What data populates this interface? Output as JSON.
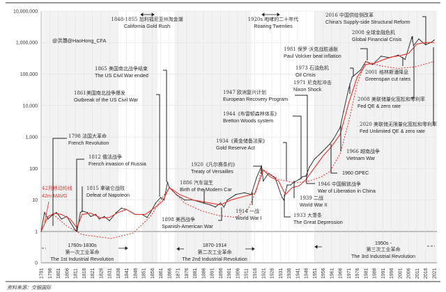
{
  "watermark": "@洪灝@HaoHong_CFA",
  "source": "资料来源：交银国际",
  "legend": {
    "cn": "42月移动均线",
    "en": "42m MAVG",
    "color": "#e8332b"
  },
  "colors": {
    "index": "#222222",
    "mavg": "#e8332b",
    "trend": "#e8332b",
    "plot_bg": "#f2f2f2"
  },
  "chart_data": {
    "type": "line",
    "y_scale": "log",
    "ylim": [
      0,
      10000000
    ],
    "y_ticks": [
      "10,000,000",
      "1,000,000",
      "100,000",
      "10,000",
      "1,000",
      "100",
      "10",
      "1",
      "0"
    ],
    "x_ticks": [
      "1791",
      "1796",
      "1801",
      "1806",
      "1811",
      "1816",
      "1821",
      "1826",
      "1831",
      "1836",
      "1841",
      "1846",
      "1851",
      "1856",
      "1861",
      "1866",
      "1871",
      "1876",
      "1881",
      "1886",
      "1891",
      "1896",
      "1901",
      "1906",
      "1911",
      "1916",
      "1921",
      "1926",
      "1931",
      "1936",
      "1941",
      "1946",
      "1951",
      "1956",
      "1961",
      "1966",
      "1971",
      "1976",
      "1981",
      "1986",
      "1991",
      "1996",
      "2001",
      "2006",
      "2011",
      "2016",
      "2021"
    ],
    "xlim": [
      1791,
      2024
    ],
    "grid": true,
    "series": [
      {
        "key": "index",
        "points": [
          [
            1791,
            1
          ],
          [
            1793,
            4
          ],
          [
            1795,
            2.5
          ],
          [
            1798,
            3.5
          ],
          [
            1800,
            4
          ],
          [
            1803,
            2.5
          ],
          [
            1806,
            3
          ],
          [
            1808,
            2
          ],
          [
            1811,
            1.1
          ],
          [
            1812,
            1
          ],
          [
            1814,
            4
          ],
          [
            1815,
            4.5
          ],
          [
            1818,
            4
          ],
          [
            1820,
            3
          ],
          [
            1823,
            3.5
          ],
          [
            1825,
            2.5
          ],
          [
            1828,
            3
          ],
          [
            1831,
            2.2
          ],
          [
            1835,
            4
          ],
          [
            1838,
            5.5
          ],
          [
            1841,
            5
          ],
          [
            1844,
            4
          ],
          [
            1846,
            3.5
          ],
          [
            1850,
            3.5
          ],
          [
            1853,
            2.8
          ],
          [
            1855,
            4
          ],
          [
            1858,
            8
          ],
          [
            1861,
            12
          ],
          [
            1863,
            10
          ],
          [
            1865,
            37
          ],
          [
            1866,
            25
          ],
          [
            1870,
            15
          ],
          [
            1875,
            10
          ],
          [
            1880,
            10
          ],
          [
            1886,
            8
          ],
          [
            1890,
            7
          ],
          [
            1893,
            6
          ],
          [
            1896,
            8
          ],
          [
            1898,
            6
          ],
          [
            1900,
            10
          ],
          [
            1905,
            15
          ],
          [
            1910,
            17
          ],
          [
            1914,
            15
          ],
          [
            1917,
            50
          ],
          [
            1920,
            120
          ],
          [
            1921,
            40
          ],
          [
            1924,
            70
          ],
          [
            1928,
            50
          ],
          [
            1932,
            12
          ],
          [
            1933,
            10
          ],
          [
            1935,
            30
          ],
          [
            1937,
            30
          ],
          [
            1939,
            37
          ],
          [
            1942,
            45
          ],
          [
            1944,
            55
          ],
          [
            1946,
            58
          ],
          [
            1948,
            110
          ],
          [
            1951,
            200
          ],
          [
            1955,
            320
          ],
          [
            1960,
            600
          ],
          [
            1962,
            850
          ],
          [
            1966,
            2000
          ],
          [
            1968,
            6500
          ],
          [
            1971,
            35000
          ],
          [
            1973,
            80000
          ],
          [
            1978,
            135000
          ],
          [
            1981,
            250000
          ],
          [
            1985,
            200000
          ],
          [
            1990,
            370000
          ],
          [
            1995,
            330000
          ],
          [
            2000,
            400000
          ],
          [
            2004,
            290000
          ],
          [
            2008,
            1500000
          ],
          [
            2009,
            800000
          ],
          [
            2012,
            1300000
          ],
          [
            2016,
            850000
          ],
          [
            2019,
            1000000
          ],
          [
            2021,
            1200000
          ]
        ]
      },
      {
        "key": "mavg",
        "name": "42m MAVG",
        "points": [
          [
            1791,
            1
          ],
          [
            1795,
            3
          ],
          [
            1799,
            3.8
          ],
          [
            1803,
            3.5
          ],
          [
            1808,
            2.5
          ],
          [
            1812,
            1.3
          ],
          [
            1815,
            3.5
          ],
          [
            1820,
            3.8
          ],
          [
            1826,
            2.7
          ],
          [
            1831,
            2.8
          ],
          [
            1836,
            4
          ],
          [
            1841,
            5
          ],
          [
            1846,
            3.5
          ],
          [
            1852,
            3.5
          ],
          [
            1858,
            6
          ],
          [
            1862,
            9
          ],
          [
            1866,
            25
          ],
          [
            1872,
            15
          ],
          [
            1880,
            10
          ],
          [
            1890,
            8
          ],
          [
            1896,
            7
          ],
          [
            1902,
            10
          ],
          [
            1912,
            14
          ],
          [
            1916,
            16
          ],
          [
            1921,
            90
          ],
          [
            1925,
            55
          ],
          [
            1930,
            40
          ],
          [
            1934,
            15
          ],
          [
            1938,
            25
          ],
          [
            1942,
            28
          ],
          [
            1946,
            45
          ],
          [
            1950,
            90
          ],
          [
            1956,
            250
          ],
          [
            1961,
            500
          ],
          [
            1966,
            1200
          ],
          [
            1971,
            12000
          ],
          [
            1976,
            80000
          ],
          [
            1981,
            200000
          ],
          [
            1986,
            220000
          ],
          [
            1991,
            280000
          ],
          [
            1996,
            350000
          ],
          [
            2001,
            380000
          ],
          [
            2006,
            450000
          ],
          [
            2011,
            900000
          ],
          [
            2016,
            1000000
          ],
          [
            2021,
            1000000
          ]
        ]
      },
      {
        "key": "trend1",
        "points": [
          [
            1798,
            3.5
          ],
          [
            1806,
            1.5
          ],
          [
            1815,
            0.8
          ],
          [
            1832,
            0.6
          ],
          [
            1845,
            0.9
          ],
          [
            1855,
            3
          ],
          [
            1862,
            12
          ],
          [
            1866,
            25
          ]
        ]
      },
      {
        "key": "trend2",
        "points": [
          [
            1866,
            25
          ],
          [
            1875,
            8
          ],
          [
            1885,
            4.5
          ],
          [
            1895,
            3.2
          ],
          [
            1905,
            2.8
          ],
          [
            1912,
            5
          ],
          [
            1917,
            20
          ],
          [
            1920,
            100
          ]
        ]
      },
      {
        "key": "trend3",
        "points": [
          [
            1920,
            100
          ],
          [
            1930,
            45
          ],
          [
            1940,
            35
          ],
          [
            1948,
            40
          ],
          [
            1955,
            55
          ],
          [
            1960,
            80
          ],
          [
            1966,
            300
          ],
          [
            1971,
            3000
          ],
          [
            1976,
            50000
          ],
          [
            1981,
            250000
          ]
        ]
      },
      {
        "key": "trend4",
        "points": [
          [
            1981,
            250000
          ],
          [
            1990,
            180000
          ],
          [
            2000,
            150000
          ],
          [
            2010,
            170000
          ],
          [
            2021,
            250000
          ]
        ]
      }
    ],
    "annotations": [
      {
        "cn": "1798 法国大革命",
        "en": "French Revolution"
      },
      {
        "cn": "1812 俄法战争",
        "en": "French invasion of Russia"
      },
      {
        "cn": "1815 拿破仑战败",
        "en": "Defeat of Napoleon"
      },
      {
        "cn": "1861美国南北战争爆发",
        "en": "Outbreak of the US Civil War"
      },
      {
        "cn": "1865 美国南北战争结束",
        "en": "The US Civil War ended"
      },
      {
        "cn": "1848-1855 加利福尼亚州淘金潮",
        "en": "California Gold Rush"
      },
      {
        "cn": "1886 汽车诞生",
        "en": "Birth of the Modern Car"
      },
      {
        "cn": "1898 美西战争",
        "en": "Spanish-American War"
      },
      {
        "cn": "1920《凡尔赛条约》",
        "en": "Treaty of Versailles"
      },
      {
        "cn": "1934《黄金储备法案》",
        "en": "Gold Reserve Act"
      },
      {
        "cn": "1944《布雷顿森林体系》",
        "en": "Bretton Woods system"
      },
      {
        "cn": "1947 欧洲复兴计划",
        "en": "European Recovery Program"
      },
      {
        "cn": "1914 一战",
        "en": "World War I"
      },
      {
        "cn": "1933 大萧条",
        "en": "The Great Depression"
      },
      {
        "cn": "1939 二战",
        "en": "World War II"
      },
      {
        "cn": "1946 中国解放战争",
        "en": "War of Liberation in China"
      },
      {
        "cn": "",
        "en": "1960 OPEC"
      },
      {
        "cn": "1966 越南战争",
        "en": "Vietnam War"
      },
      {
        "cn": "1971 尼克松冲击",
        "en": "Nixon Shock"
      },
      {
        "cn": "1973 石油危机",
        "en": "Oil Crisis"
      },
      {
        "cn": "1981 保罗·沃克战胜通胀",
        "en": "Paul Volcker beat inflation"
      },
      {
        "cn": "2001 格林斯潘降息",
        "en": "Greenspan cut rates"
      },
      {
        "cn": "2008 美联储量化宽松和零利率",
        "en": "Fed QE & zero rate"
      },
      {
        "cn": "2020 美联储无限量化宽松和零利率",
        "en": "Fed  Unlimited QE & zero rate"
      },
      {
        "cn": "2008 全球金融危机",
        "en": "Global Financial Crisis"
      },
      {
        "cn": "2016 中国供给侧改革",
        "en": "China's Supply-side Structural Reform"
      },
      {
        "cn": "1920s 咆哮的二十年代",
        "en": "Roaring Twenties"
      }
    ],
    "eras": [
      {
        "period": "1760s-1830s",
        "cn": "第一次工业革命",
        "en": "The 1st  Industrial Revolution"
      },
      {
        "period": "1870-1914",
        "cn": "第二次工业革命",
        "en": "The 2nd  Industrial Revolution"
      },
      {
        "period": "1950s -",
        "cn": "第三次工业革命",
        "en": "The 3rd  Industrial Revolution"
      }
    ]
  }
}
